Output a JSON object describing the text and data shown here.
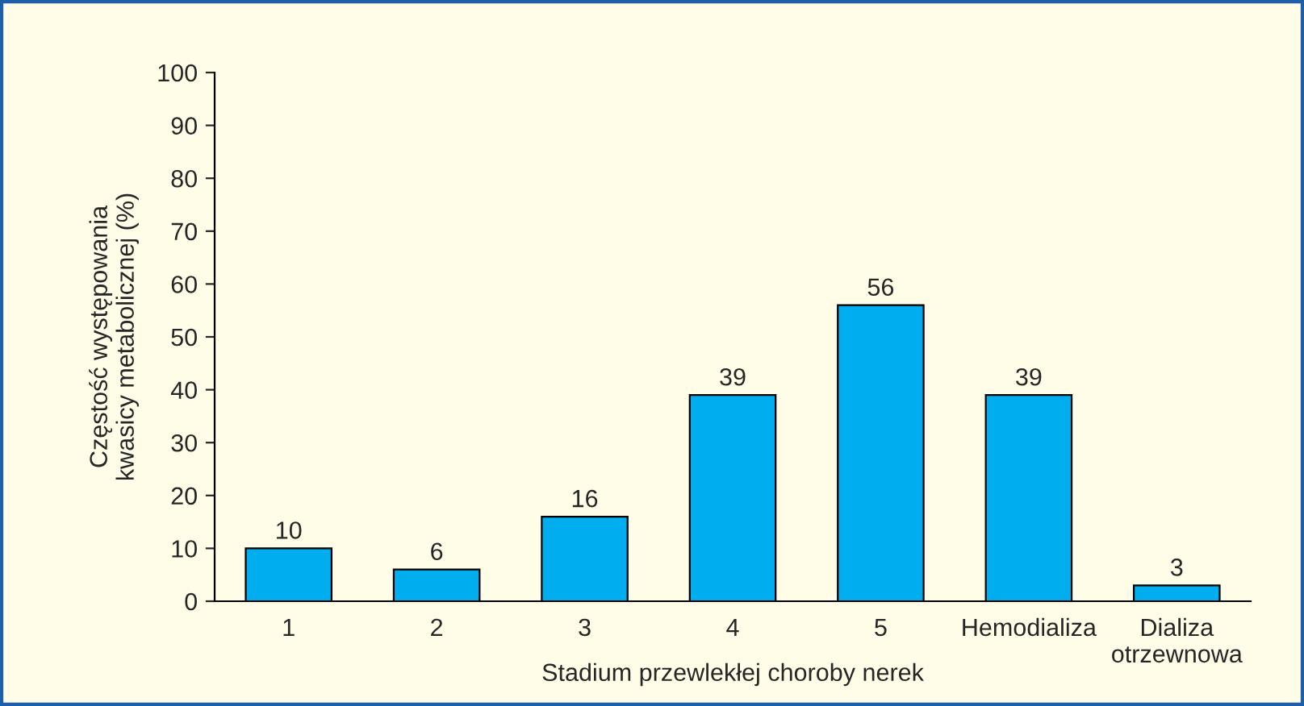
{
  "chart_data": {
    "type": "bar",
    "categories": [
      "1",
      "2",
      "3",
      "4",
      "5",
      "Hemodializa",
      "Dializa\notrzewnowa"
    ],
    "values": [
      10,
      6,
      16,
      39,
      56,
      39,
      3
    ],
    "color": "#00aeef",
    "xlabel": "Stadium przewlekłej choroby nerek",
    "ylabel": "Częstość występowania\nkwasicy metabolicznej (%)",
    "ylim": [
      0,
      100
    ],
    "yticks": [
      0,
      10,
      20,
      30,
      40,
      50,
      60,
      70,
      80,
      90,
      100
    ],
    "data_labels": true,
    "grid": false,
    "legend": false
  }
}
